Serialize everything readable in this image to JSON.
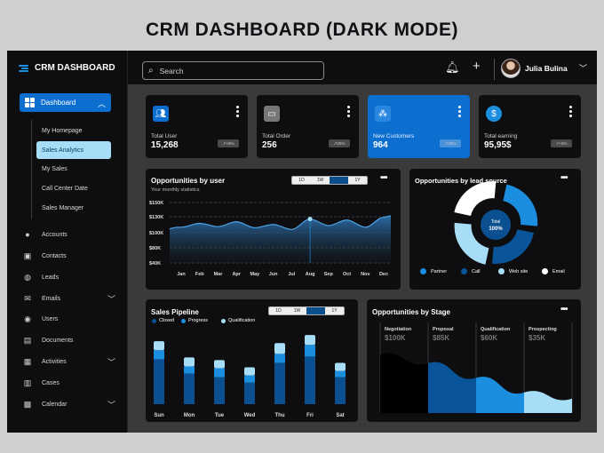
{
  "page_title": "CRM DASHBOARD (DARK MODE)",
  "colors": {
    "accent": "#0c6fcf",
    "light_blue": "#a8ddf7",
    "panel": "#0e0e10",
    "background": "#3a3a3a"
  },
  "sidebar": {
    "brand": "CRM DASHBOARD",
    "dashboard_label": "Dashboard",
    "sub_items": [
      "My Homepage",
      "Sales Analytics",
      "My Sales",
      "Call Center Date",
      "Sales Manager"
    ],
    "active_sub": "Sales Analytics",
    "nav_items": [
      {
        "label": "Accounts",
        "icon": "user-icon"
      },
      {
        "label": "Contacts",
        "icon": "contact-card-icon"
      },
      {
        "label": "Leads",
        "icon": "leads-icon"
      },
      {
        "label": "Emails",
        "icon": "mail-icon"
      },
      {
        "label": "Users",
        "icon": "users-icon"
      },
      {
        "label": "Documents",
        "icon": "document-icon"
      },
      {
        "label": "Activities",
        "icon": "activity-icon"
      },
      {
        "label": "Cases",
        "icon": "case-icon"
      },
      {
        "label": "Calendar",
        "icon": "calendar-icon"
      }
    ]
  },
  "topbar": {
    "search_placeholder": "Search",
    "user_name": "Julia Bulina"
  },
  "stats": [
    {
      "label": "Total User",
      "value": "15,268",
      "badge": "+8%",
      "icon": "users-icon",
      "highlight": false
    },
    {
      "label": "Total Order",
      "value": "256",
      "badge": "25%",
      "icon": "bag-icon",
      "highlight": false
    },
    {
      "label": "New Customers",
      "value": "964",
      "badge": "30%",
      "icon": "customers-icon",
      "highlight": true
    },
    {
      "label": "Total earning",
      "value": "95,95$",
      "badge": "+5%",
      "icon": "dollar-icon",
      "highlight": false
    }
  ],
  "opportunities_by_user": {
    "title": "Opportunities by user",
    "subtitle": "Your monthly statistics",
    "toggle": [
      "1D",
      "1W",
      "1M",
      "1Y"
    ],
    "active_toggle": "1M"
  },
  "lead_source": {
    "title": "Opportunities by lead source",
    "center_label": "Total",
    "center_value": "100%",
    "legend": [
      {
        "label": "Partner",
        "color": "#1b8ee0"
      },
      {
        "label": "Call",
        "color": "#0a5499"
      },
      {
        "label": "Web site",
        "color": "#a8ddf7"
      },
      {
        "label": "Email",
        "color": "#ffffff"
      }
    ]
  },
  "sales_pipeline": {
    "title": "Sales Pipeline",
    "toggle": [
      "1D",
      "1W",
      "1M",
      "1Y"
    ],
    "active_toggle": "1M",
    "legend": [
      {
        "label": "Closed",
        "color": "#0a4f8f"
      },
      {
        "label": "Progress",
        "color": "#1b8ee0"
      },
      {
        "label": "Qualification",
        "color": "#a8ddf7"
      }
    ]
  },
  "opportunities_by_stage": {
    "title": "Opportunities by Stage",
    "stages": [
      {
        "name": "Negotiation",
        "value": "$100K"
      },
      {
        "name": "Proposal",
        "value": "$85K"
      },
      {
        "name": "Qualification",
        "value": "$60K"
      },
      {
        "name": "Prospecting",
        "value": "$35K"
      }
    ]
  },
  "chart_data": [
    {
      "type": "area",
      "title": "Opportunities by user",
      "categories": [
        "Jan",
        "Feb",
        "Mar",
        "Apr",
        "May",
        "Jun",
        "Jul",
        "Aug",
        "Sep",
        "Oct",
        "Nov",
        "Dec"
      ],
      "y_ticks": [
        "$150K",
        "$130K",
        "$100K",
        "$80K",
        "$40K"
      ],
      "values": [
        105,
        112,
        106,
        115,
        104,
        110,
        101,
        120,
        108,
        118,
        105,
        123
      ],
      "ylim": [
        40,
        150
      ]
    },
    {
      "type": "pie",
      "title": "Opportunities by lead source",
      "categories": [
        "Partner",
        "Call",
        "Web site",
        "Email"
      ],
      "values": [
        25,
        25,
        25,
        25
      ]
    },
    {
      "type": "bar",
      "title": "Sales Pipeline",
      "categories": [
        "Sun",
        "Mon",
        "Tue",
        "Wed",
        "Thu",
        "Fri",
        "Sat"
      ],
      "series": [
        {
          "name": "Closed",
          "values": [
            50,
            34,
            30,
            24,
            46,
            53,
            30
          ]
        },
        {
          "name": "Progress",
          "values": [
            10,
            8,
            10,
            8,
            10,
            13,
            7
          ]
        },
        {
          "name": "Qualification",
          "values": [
            10,
            10,
            9,
            9,
            12,
            11,
            9
          ]
        }
      ],
      "ylim": [
        0,
        85
      ]
    },
    {
      "type": "area",
      "title": "Opportunities by Stage",
      "categories": [
        "Negotiation",
        "Proposal",
        "Qualification",
        "Prospecting"
      ],
      "values": [
        100,
        85,
        60,
        35
      ]
    }
  ]
}
